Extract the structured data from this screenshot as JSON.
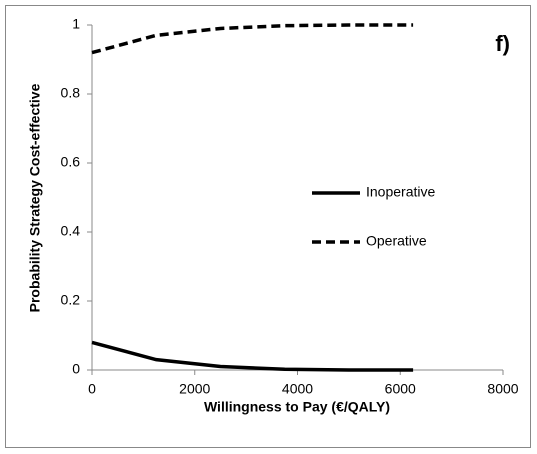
{
  "chart_data": {
    "type": "line",
    "annotation": "f)",
    "x_label": "Willingness to Pay (€/QALY)",
    "y_label": "Probability Strategy Cost-effective",
    "x": [
      0,
      1250,
      2500,
      3750,
      5000,
      6250
    ],
    "series": [
      {
        "name": "Inoperative",
        "color": "#000000",
        "dash": "solid",
        "values": [
          0.08,
          0.03,
          0.01,
          0.002,
          0,
          0
        ]
      },
      {
        "name": "Operative",
        "color": "#000000",
        "dash": "dashed",
        "values": [
          0.92,
          0.97,
          0.99,
          0.998,
          1,
          1
        ]
      }
    ],
    "xlim": [
      0,
      8000
    ],
    "xticks": [
      0,
      2000,
      4000,
      6000,
      8000
    ],
    "ylim": [
      0,
      1
    ],
    "yticks": [
      0,
      0.2,
      0.4,
      0.6,
      0.8,
      1
    ],
    "grid": false,
    "legend": "center right"
  }
}
